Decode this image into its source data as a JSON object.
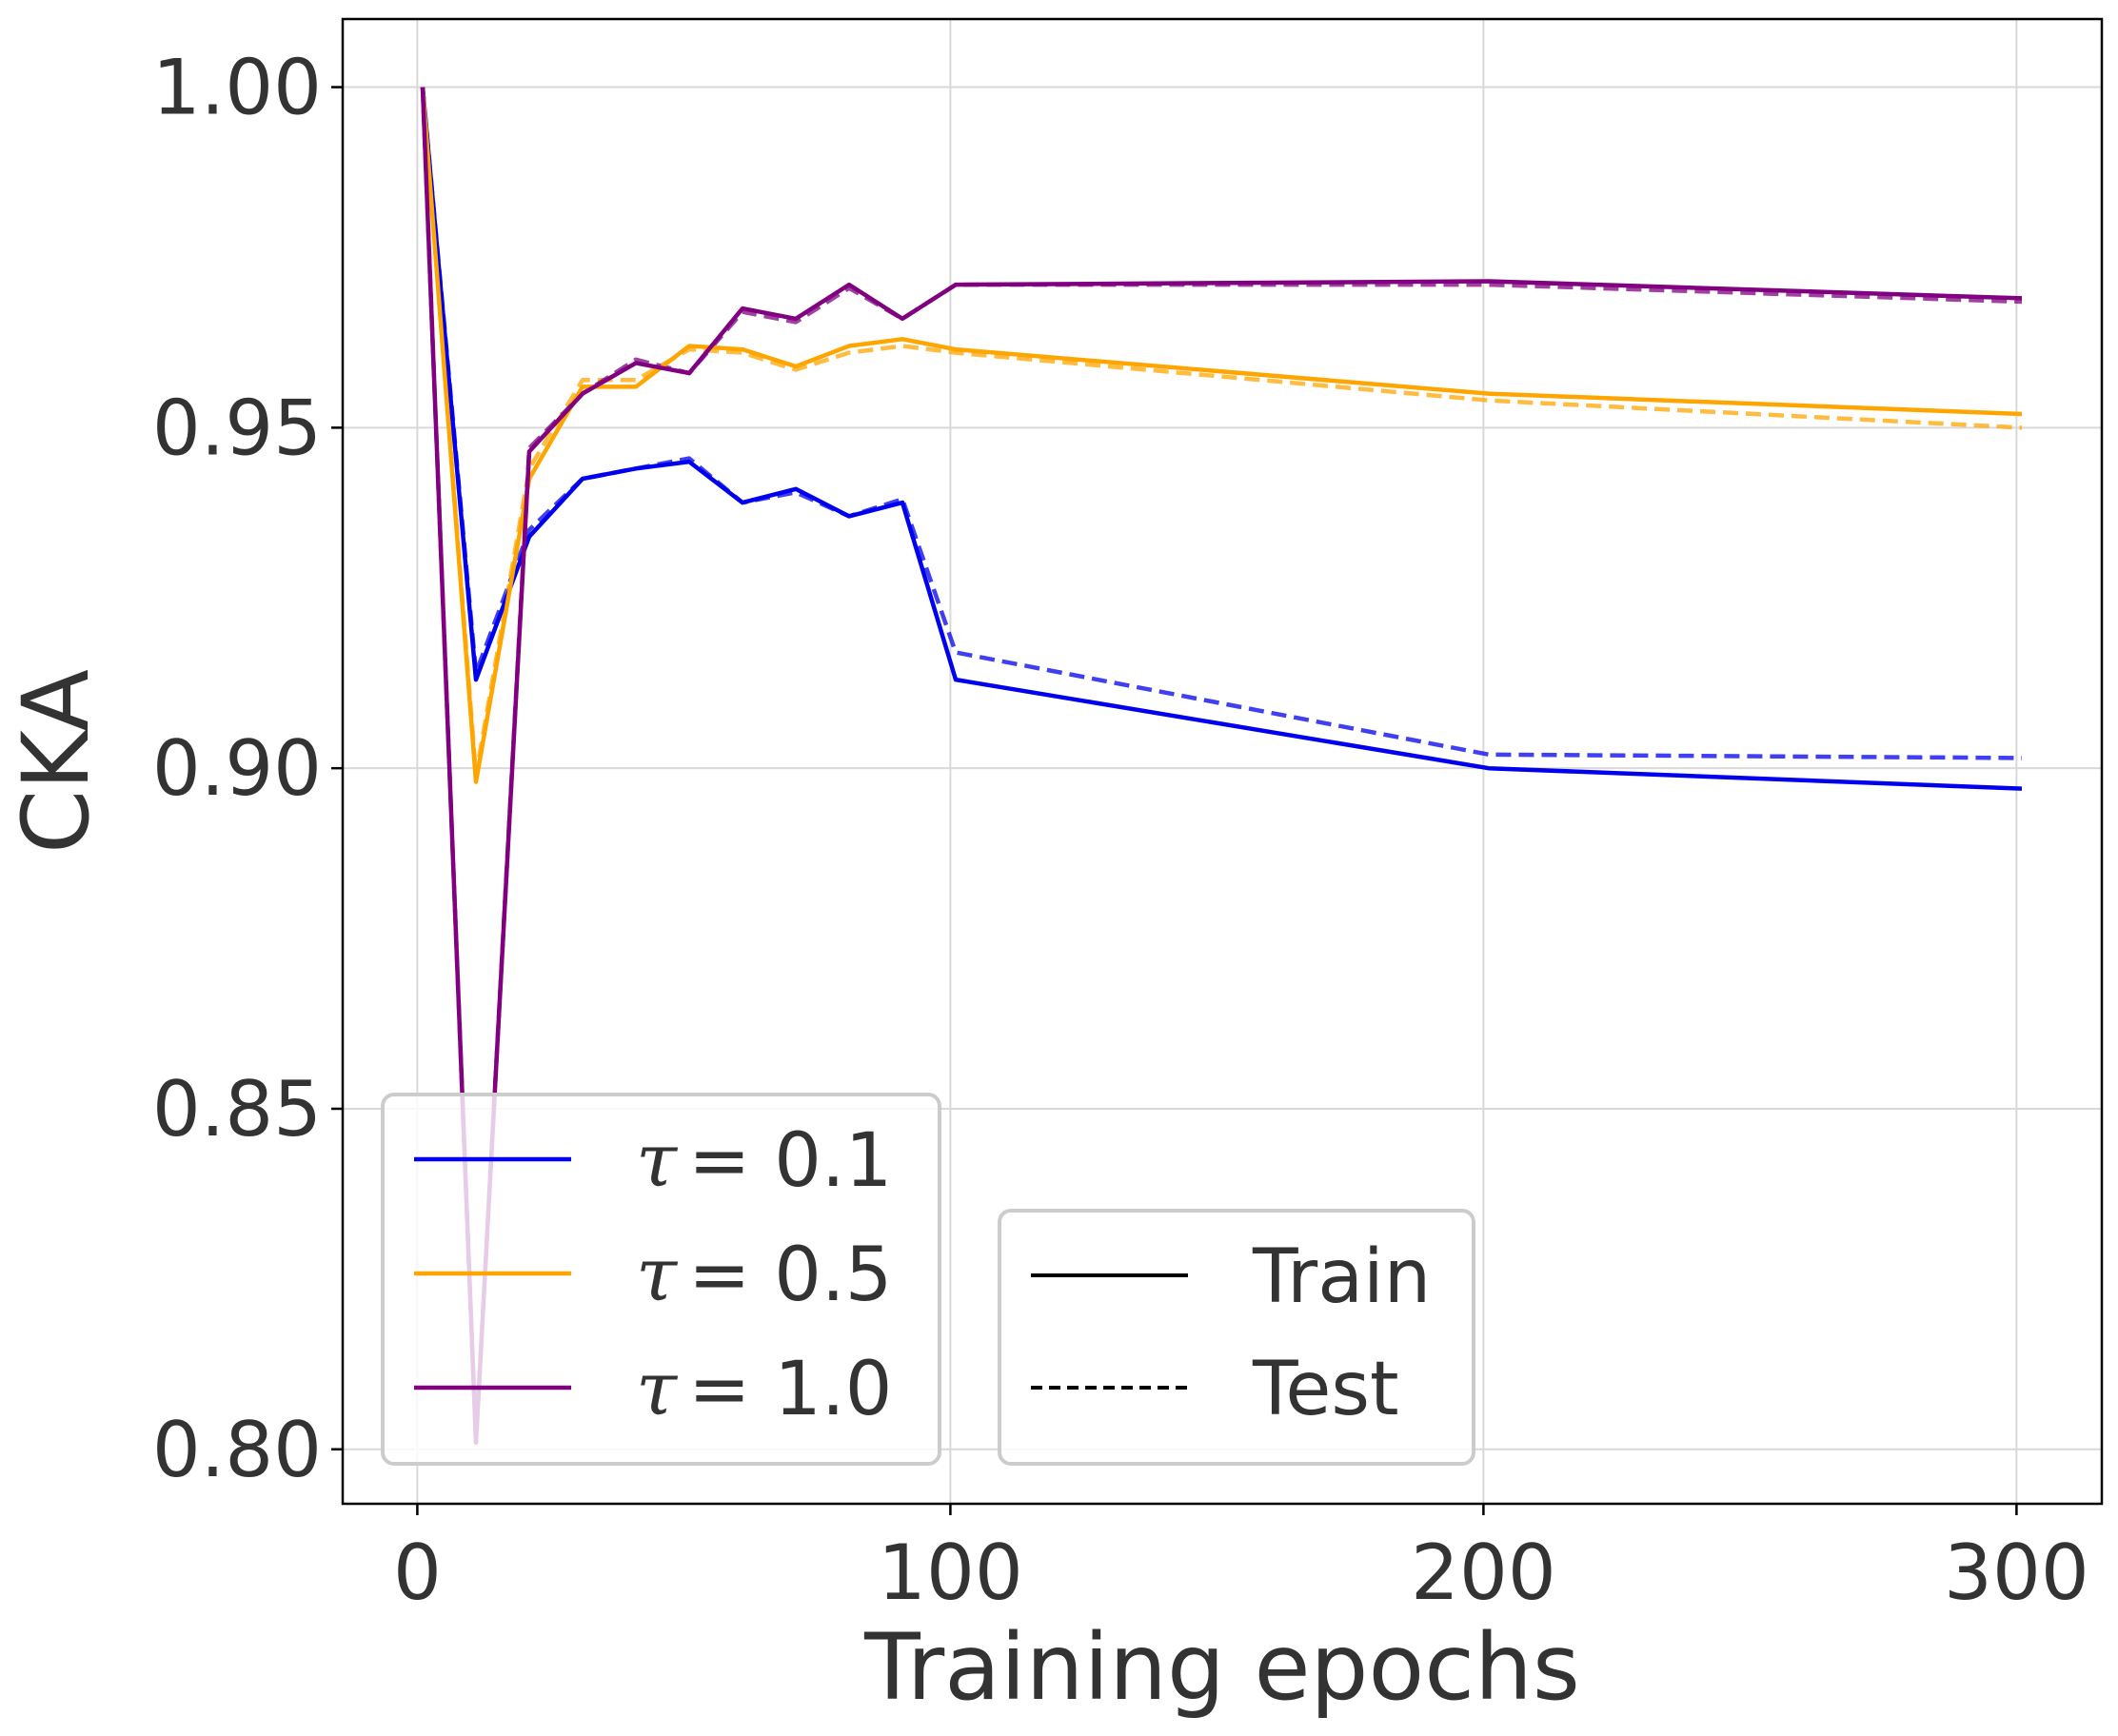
{
  "chart_data": {
    "type": "line",
    "xlabel": "Training epochs",
    "ylabel": "CKA",
    "xlim": [
      -14,
      316
    ],
    "ylim": [
      0.792,
      1.01
    ],
    "xticks": [
      0,
      100,
      200,
      300
    ],
    "xtick_labels": [
      "0",
      "100",
      "200",
      "300"
    ],
    "yticks": [
      0.8,
      0.85,
      0.9,
      0.95,
      1.0
    ],
    "ytick_labels": [
      "0.80",
      "0.85",
      "0.90",
      "0.95",
      "1.00"
    ],
    "grid": true,
    "series": [
      {
        "name": "τ = 0.1",
        "tau_symbol": "τ",
        "tau_value": "= 0.1",
        "color": "#0000ee",
        "train": [
          [
            1,
            1.0
          ],
          [
            11,
            0.913
          ],
          [
            21,
            0.934
          ],
          [
            31,
            0.9425
          ],
          [
            41,
            0.944
          ],
          [
            51,
            0.945
          ],
          [
            61,
            0.939
          ],
          [
            71,
            0.941
          ],
          [
            81,
            0.937
          ],
          [
            91,
            0.939
          ],
          [
            101,
            0.913
          ],
          [
            201,
            0.9
          ],
          [
            301,
            0.897
          ]
        ],
        "test": [
          [
            1,
            1.0
          ],
          [
            11,
            0.914
          ],
          [
            21,
            0.935
          ],
          [
            31,
            0.9425
          ],
          [
            41,
            0.944
          ],
          [
            51,
            0.9455
          ],
          [
            61,
            0.939
          ],
          [
            71,
            0.9405
          ],
          [
            81,
            0.937
          ],
          [
            91,
            0.9395
          ],
          [
            101,
            0.917
          ],
          [
            201,
            0.902
          ],
          [
            301,
            0.9015
          ]
        ]
      },
      {
        "name": "τ = 0.5",
        "tau_symbol": "τ",
        "tau_value": "= 0.5",
        "color": "#ffa500",
        "train": [
          [
            1,
            1.0
          ],
          [
            11,
            0.898
          ],
          [
            21,
            0.9425
          ],
          [
            31,
            0.956
          ],
          [
            41,
            0.956
          ],
          [
            51,
            0.962
          ],
          [
            61,
            0.9615
          ],
          [
            71,
            0.959
          ],
          [
            81,
            0.962
          ],
          [
            91,
            0.963
          ],
          [
            101,
            0.9615
          ],
          [
            201,
            0.955
          ],
          [
            301,
            0.952
          ]
        ],
        "test": [
          [
            1,
            1.0
          ],
          [
            11,
            0.899
          ],
          [
            21,
            0.944
          ],
          [
            31,
            0.957
          ],
          [
            41,
            0.957
          ],
          [
            51,
            0.9615
          ],
          [
            61,
            0.961
          ],
          [
            71,
            0.9585
          ],
          [
            81,
            0.961
          ],
          [
            91,
            0.962
          ],
          [
            101,
            0.961
          ],
          [
            201,
            0.954
          ],
          [
            301,
            0.95
          ]
        ]
      },
      {
        "name": "τ = 1.0",
        "tau_symbol": "τ",
        "tau_value": "= 1.0",
        "color": "#800080",
        "train": [
          [
            1,
            1.0
          ],
          [
            11,
            0.801
          ],
          [
            21,
            0.9465
          ],
          [
            31,
            0.955
          ],
          [
            41,
            0.9595
          ],
          [
            51,
            0.958
          ],
          [
            61,
            0.9675
          ],
          [
            71,
            0.966
          ],
          [
            81,
            0.971
          ],
          [
            91,
            0.966
          ],
          [
            101,
            0.971
          ],
          [
            201,
            0.9715
          ],
          [
            301,
            0.969
          ]
        ],
        "test": [
          [
            1,
            1.0
          ],
          [
            11,
            0.801
          ],
          [
            21,
            0.947
          ],
          [
            31,
            0.955
          ],
          [
            41,
            0.96
          ],
          [
            51,
            0.958
          ],
          [
            61,
            0.967
          ],
          [
            71,
            0.9655
          ],
          [
            81,
            0.9705
          ],
          [
            91,
            0.966
          ],
          [
            101,
            0.971
          ],
          [
            201,
            0.971
          ],
          [
            301,
            0.9685
          ]
        ]
      }
    ],
    "style_legend": [
      {
        "name": "Train",
        "dash": "solid"
      },
      {
        "name": "Test",
        "dash": "dashed"
      }
    ],
    "legend_placement": [
      "lower-left",
      "lower-center"
    ]
  }
}
